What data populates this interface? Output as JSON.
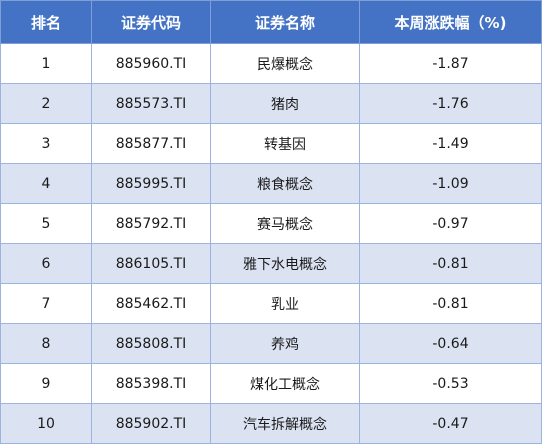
{
  "table": {
    "headers": [
      "排名",
      "证券代码",
      "证券名称",
      "本周涨跌幅（%)"
    ],
    "rows": [
      {
        "rank": "1",
        "code": "885960.TI",
        "name": "民爆概念",
        "change": "-1.87"
      },
      {
        "rank": "2",
        "code": "885573.TI",
        "name": "猪肉",
        "change": "-1.76"
      },
      {
        "rank": "3",
        "code": "885877.TI",
        "name": "转基因",
        "change": "-1.49"
      },
      {
        "rank": "4",
        "code": "885995.TI",
        "name": "粮食概念",
        "change": "-1.09"
      },
      {
        "rank": "5",
        "code": "885792.TI",
        "name": "赛马概念",
        "change": "-0.97"
      },
      {
        "rank": "6",
        "code": "886105.TI",
        "name": "雅下水电概念",
        "change": "-0.81"
      },
      {
        "rank": "7",
        "code": "885462.TI",
        "name": "乳业",
        "change": "-0.81"
      },
      {
        "rank": "8",
        "code": "885808.TI",
        "name": "养鸡",
        "change": "-0.64"
      },
      {
        "rank": "9",
        "code": "885398.TI",
        "name": "煤化工概念",
        "change": "-0.53"
      },
      {
        "rank": "10",
        "code": "885902.TI",
        "name": "汽车拆解概念",
        "change": "-0.47"
      }
    ]
  },
  "colors": {
    "header_bg": "#4472c4",
    "header_text": "#ffffff",
    "band_row": "#dbe3f2",
    "plain_row": "#ffffff"
  }
}
